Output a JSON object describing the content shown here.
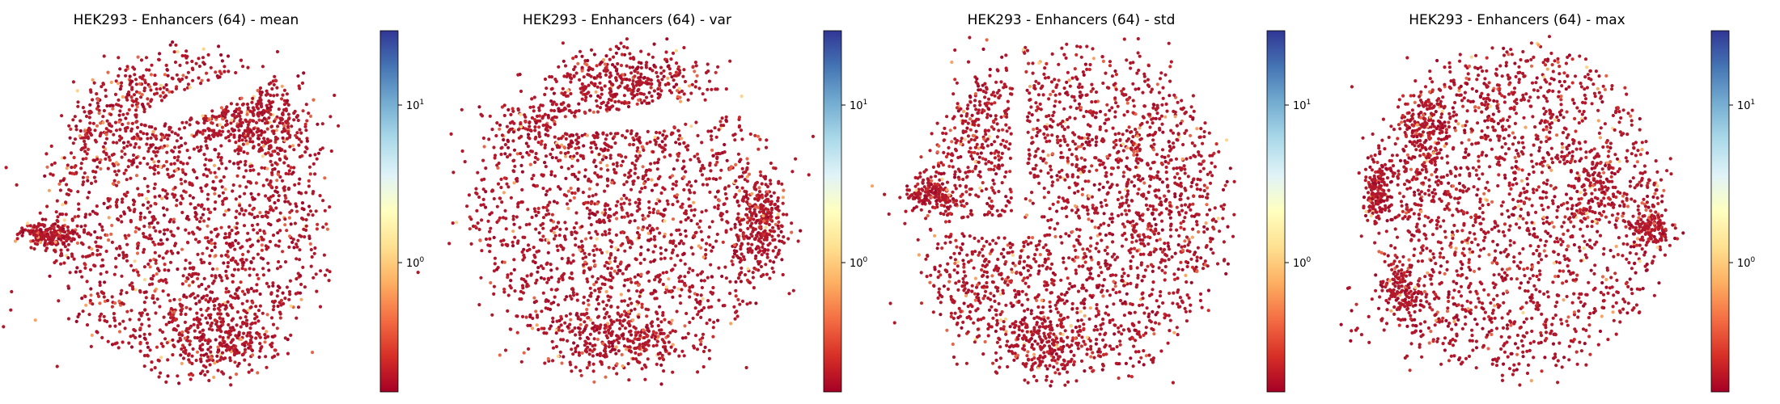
{
  "chart_data": [
    {
      "type": "scatter",
      "title": "HEK293 - Enhancers (64) - mean",
      "xlabel": "",
      "ylabel": "",
      "axes_visible": false,
      "point_count_estimate": 5000,
      "color_scale": {
        "colormap": "RdYlBu",
        "scale": "log",
        "range": [
          0.15,
          30
        ],
        "ticks": [
          {
            "value": 1,
            "base": "10",
            "exp": "0"
          },
          {
            "value": 10,
            "base": "10",
            "exp": "1"
          }
        ]
      },
      "dominant_color": "#b3172b"
    },
    {
      "type": "scatter",
      "title": "HEK293 - Enhancers (64) - var",
      "xlabel": "",
      "ylabel": "",
      "axes_visible": false,
      "point_count_estimate": 5000,
      "color_scale": {
        "colormap": "RdYlBu",
        "scale": "log",
        "range": [
          0.15,
          30
        ],
        "ticks": [
          {
            "value": 1,
            "base": "10",
            "exp": "0"
          },
          {
            "value": 10,
            "base": "10",
            "exp": "1"
          }
        ]
      },
      "dominant_color": "#b3172b"
    },
    {
      "type": "scatter",
      "title": "HEK293 - Enhancers (64) - std",
      "xlabel": "",
      "ylabel": "",
      "axes_visible": false,
      "point_count_estimate": 5000,
      "color_scale": {
        "colormap": "RdYlBu",
        "scale": "log",
        "range": [
          0.15,
          30
        ],
        "ticks": [
          {
            "value": 1,
            "base": "10",
            "exp": "0"
          },
          {
            "value": 10,
            "base": "10",
            "exp": "1"
          }
        ]
      },
      "dominant_color": "#b3172b"
    },
    {
      "type": "scatter",
      "title": "HEK293 - Enhancers (64) - max",
      "xlabel": "",
      "ylabel": "",
      "axes_visible": false,
      "point_count_estimate": 5000,
      "color_scale": {
        "colormap": "RdYlBu",
        "scale": "log",
        "range": [
          0.15,
          30
        ],
        "ticks": [
          {
            "value": 1,
            "base": "10",
            "exp": "0"
          },
          {
            "value": 10,
            "base": "10",
            "exp": "1"
          }
        ]
      },
      "dominant_color": "#b3172b"
    }
  ]
}
